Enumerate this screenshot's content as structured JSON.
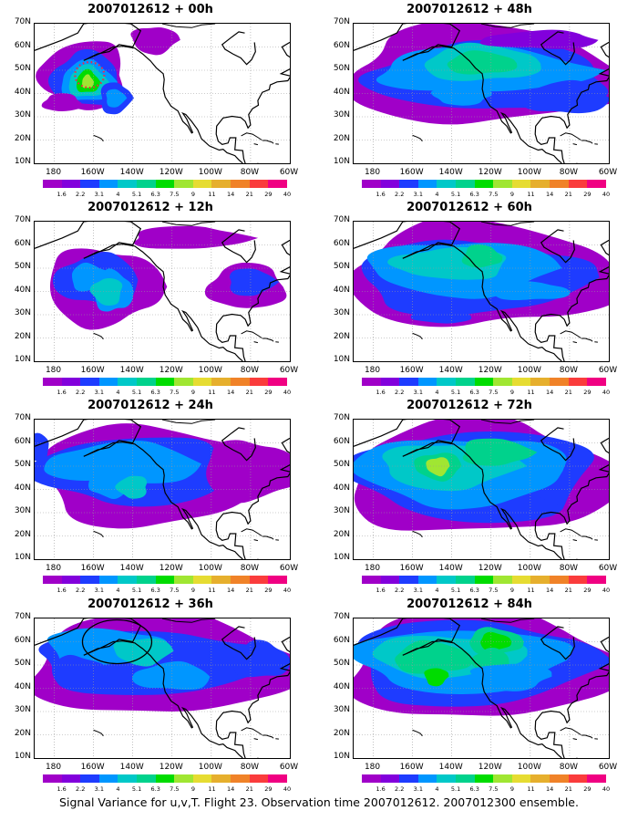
{
  "panels": [
    {
      "title": "2007012612 + 00h"
    },
    {
      "title": "2007012612 + 48h"
    },
    {
      "title": "2007012612 + 12h"
    },
    {
      "title": "2007012612 + 60h"
    },
    {
      "title": "2007012612 + 24h"
    },
    {
      "title": "2007012612 + 72h"
    },
    {
      "title": "2007012612 + 36h"
    },
    {
      "title": "2007012612 + 84h"
    }
  ],
  "lat_labels": [
    "70N",
    "60N",
    "50N",
    "40N",
    "30N",
    "20N",
    "10N"
  ],
  "lon_labels": [
    "180",
    "160W",
    "140W",
    "120W",
    "100W",
    "80W",
    "60W"
  ],
  "colorbar": {
    "labels": [
      "1.6",
      "2.2",
      "3.1",
      "4",
      "5.1",
      "6.3",
      "7.5",
      "9",
      "11",
      "14",
      "21",
      "29",
      "40"
    ],
    "colors": [
      "#a000c8",
      "#8200dc",
      "#1e3cff",
      "#0096ff",
      "#00c8c8",
      "#00d28c",
      "#00dc00",
      "#a0e632",
      "#e6dc32",
      "#e6af2d",
      "#f08228",
      "#fa3c3c",
      "#f00082"
    ]
  },
  "caption": "Signal Variance for u,v,T. Flight 23. Observation time 2007012612. 2007012300 ensemble."
}
